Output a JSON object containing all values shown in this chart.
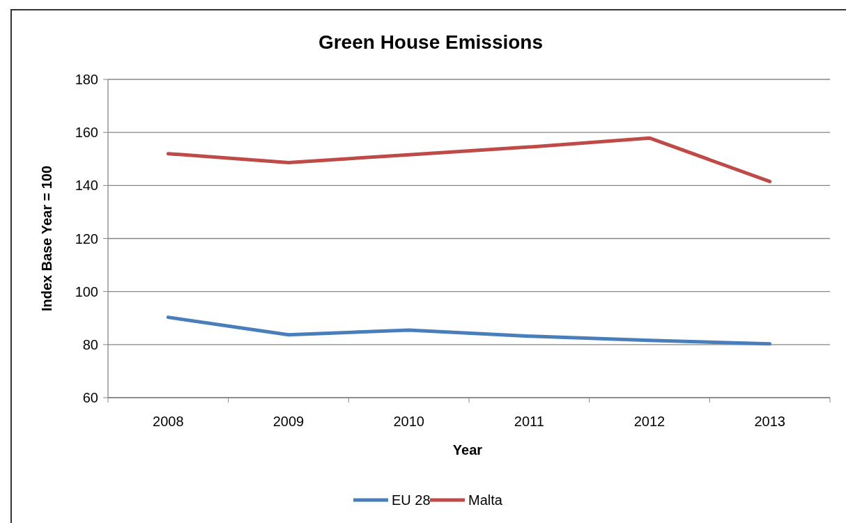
{
  "chart_data": {
    "type": "line",
    "title": "Green House Emissions",
    "xlabel": "Year",
    "ylabel": "Index Base Year = 100",
    "categories": [
      "2008",
      "2009",
      "2010",
      "2011",
      "2012",
      "2013"
    ],
    "series": [
      {
        "name": "EU 28",
        "color": "#4a7ebb",
        "values": [
          90.3,
          83.7,
          85.5,
          83.2,
          81.6,
          80.3
        ]
      },
      {
        "name": "Malta",
        "color": "#be4b48",
        "values": [
          152,
          148.6,
          151.6,
          154.5,
          157.9,
          141.5
        ]
      }
    ],
    "ylim": [
      60,
      180
    ],
    "yticks": [
      60,
      80,
      100,
      120,
      140,
      160,
      180
    ],
    "grid": "y",
    "legend": "bottom",
    "marker": "none",
    "line_style": "solid"
  }
}
